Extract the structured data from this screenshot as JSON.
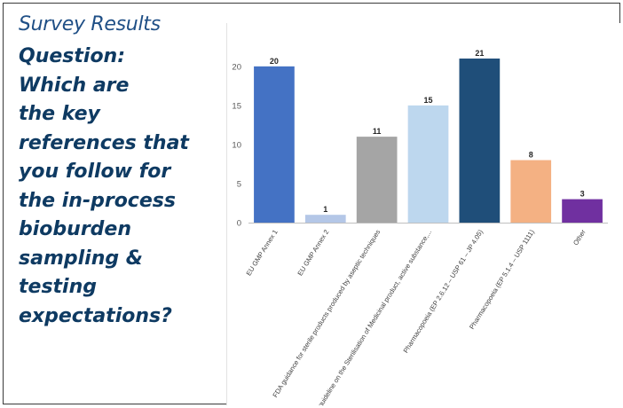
{
  "heading": "Survey Results",
  "question_lines": [
    "Question:",
    "Which are",
    "the key",
    "references that",
    "you follow for",
    "the in-process",
    "bioburden",
    "sampling &",
    "testing",
    "expectations?"
  ],
  "chart_data": {
    "type": "bar",
    "title": "",
    "xlabel": "",
    "ylabel": "",
    "ylim": [
      0,
      23.5
    ],
    "yticks": [
      0,
      5,
      10,
      15,
      20
    ],
    "grid": false,
    "legend": "none",
    "categories": [
      "EU GMP Annex 1",
      "EU GMP Annex 2",
      "FDA guidance for sterile products produced by aseptic techniques",
      "EMA guideline on the Sterilisation of Medicinal product, active substance,...",
      "Pharmacopoeia (EP 2.6.12 – USP 61 – JP 4.05)",
      "Pharmacopoeia (EP 5.1.4 – USP 1111)",
      "Other"
    ],
    "values": [
      20,
      1,
      11,
      15,
      21,
      8,
      3
    ],
    "colors": [
      "#4472c4",
      "#b4c7e7",
      "#a5a5a5",
      "#bdd7ee",
      "#1f4e79",
      "#f4b183",
      "#7030a0"
    ]
  }
}
